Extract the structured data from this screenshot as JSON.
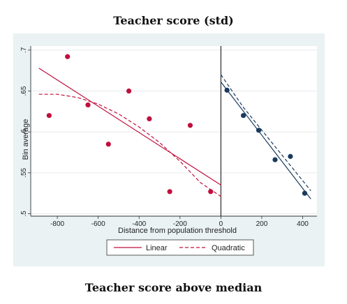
{
  "figure": {
    "top_title": "Teacher score (std)",
    "bottom_title": "Teacher score above median"
  },
  "colors": {
    "left_series": "#c0103d",
    "right_series": "#1a3a5c",
    "threshold_line": "#000000",
    "panel_background": "#eaf2f3",
    "grid": "#e6ebec"
  },
  "chart_data": {
    "type": "scatter",
    "title": "Teacher score (std)",
    "xlabel": "Distance from population threshold",
    "ylabel": "Bin average",
    "xlim": [
      -930,
      470
    ],
    "ylim": [
      0.497,
      0.705
    ],
    "x_ticks": [
      -800,
      -600,
      -400,
      -200,
      0,
      200,
      400
    ],
    "x_tick_labels": [
      "-800",
      "-600",
      "-400",
      "-200",
      "0",
      "200",
      "400"
    ],
    "y_ticks": [
      0.5,
      0.55,
      0.6,
      0.65,
      0.7
    ],
    "y_tick_labels": [
      ".5",
      ".55",
      ".6",
      ".65",
      ".7"
    ],
    "threshold_x": 0,
    "grid": true,
    "legend_position": "bottom",
    "legend": [
      "Linear",
      "Quadratic"
    ],
    "bins_left": {
      "x": [
        -840,
        -750,
        -650,
        -550,
        -450,
        -350,
        -250,
        -150,
        -50
      ],
      "y": [
        0.62,
        0.692,
        0.633,
        0.585,
        0.65,
        0.616,
        0.527,
        0.608,
        0.527
      ]
    },
    "bins_right": {
      "x": [
        30,
        110,
        185,
        265,
        340,
        410
      ],
      "y": [
        0.651,
        0.62,
        0.602,
        0.566,
        0.57,
        0.525
      ]
    },
    "fits": {
      "linear_left": {
        "x": [
          -890,
          0
        ],
        "y": [
          0.678,
          0.535
        ]
      },
      "linear_right": {
        "x": [
          0,
          440
        ],
        "y": [
          0.661,
          0.518
        ]
      },
      "quadratic_left": {
        "x": [
          -890,
          -800,
          -700,
          -600,
          -500,
          -400,
          -300,
          -200,
          -100,
          0
        ],
        "y": [
          0.646,
          0.646,
          0.642,
          0.634,
          0.622,
          0.606,
          0.587,
          0.564,
          0.538,
          0.521
        ]
      },
      "quadratic_right": {
        "x": [
          0,
          110,
          220,
          330,
          440
        ],
        "y": [
          0.67,
          0.63,
          0.596,
          0.562,
          0.528
        ]
      }
    }
  }
}
